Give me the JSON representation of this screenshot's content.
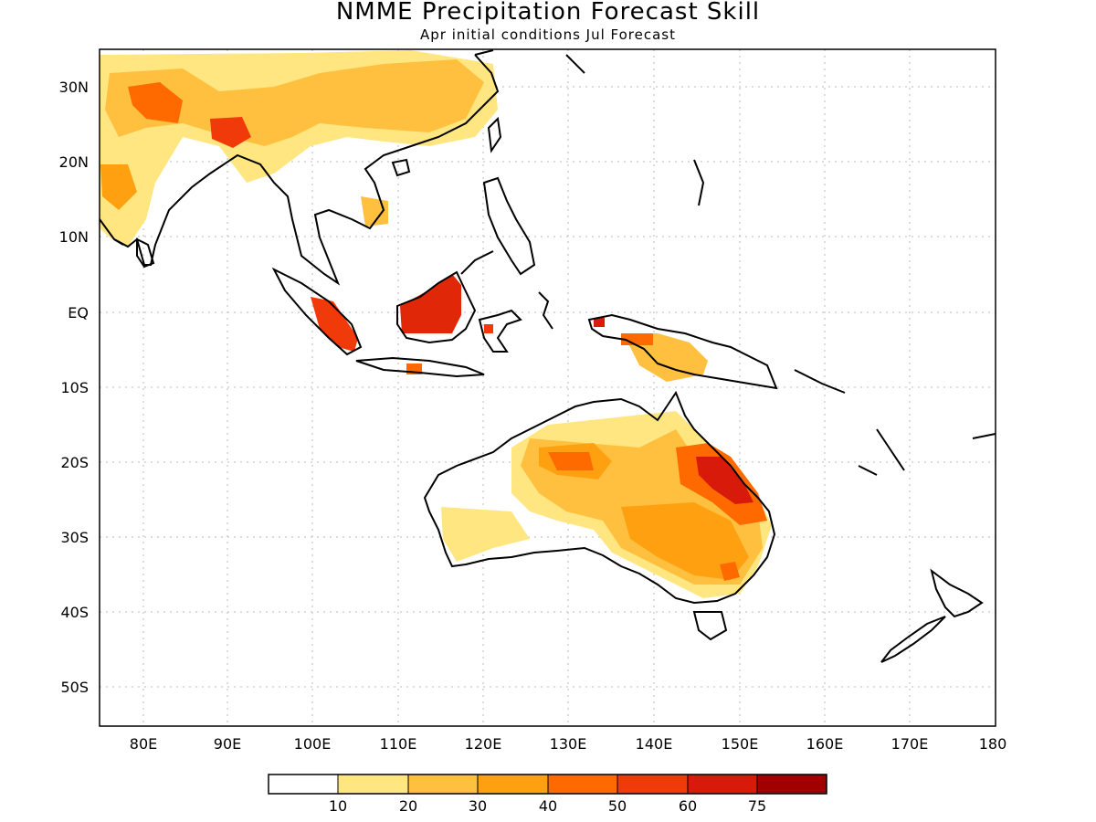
{
  "title": "NMME Precipitation Forecast Skill",
  "subtitle": "Apr initial conditions  Jul Forecast",
  "colors": {
    "c0": "#ffffff",
    "c10": "#ffe680",
    "c20": "#ffc040",
    "c30": "#ffa010",
    "c40": "#ff6a00",
    "c50": "#f03a0a",
    "c60": "#d81a0a",
    "c75": "#a00000"
  },
  "axes": {
    "lat_labels": [
      "30N",
      "20N",
      "10N",
      "EQ",
      "10S",
      "20S",
      "30S",
      "40S",
      "50S"
    ],
    "lon_labels": [
      "80E",
      "90E",
      "100E",
      "110E",
      "120E",
      "130E",
      "140E",
      "150E",
      "160E",
      "170E",
      "180"
    ]
  },
  "colorbar": {
    "labels": [
      "10",
      "20",
      "30",
      "40",
      "50",
      "60",
      "75"
    ]
  }
}
